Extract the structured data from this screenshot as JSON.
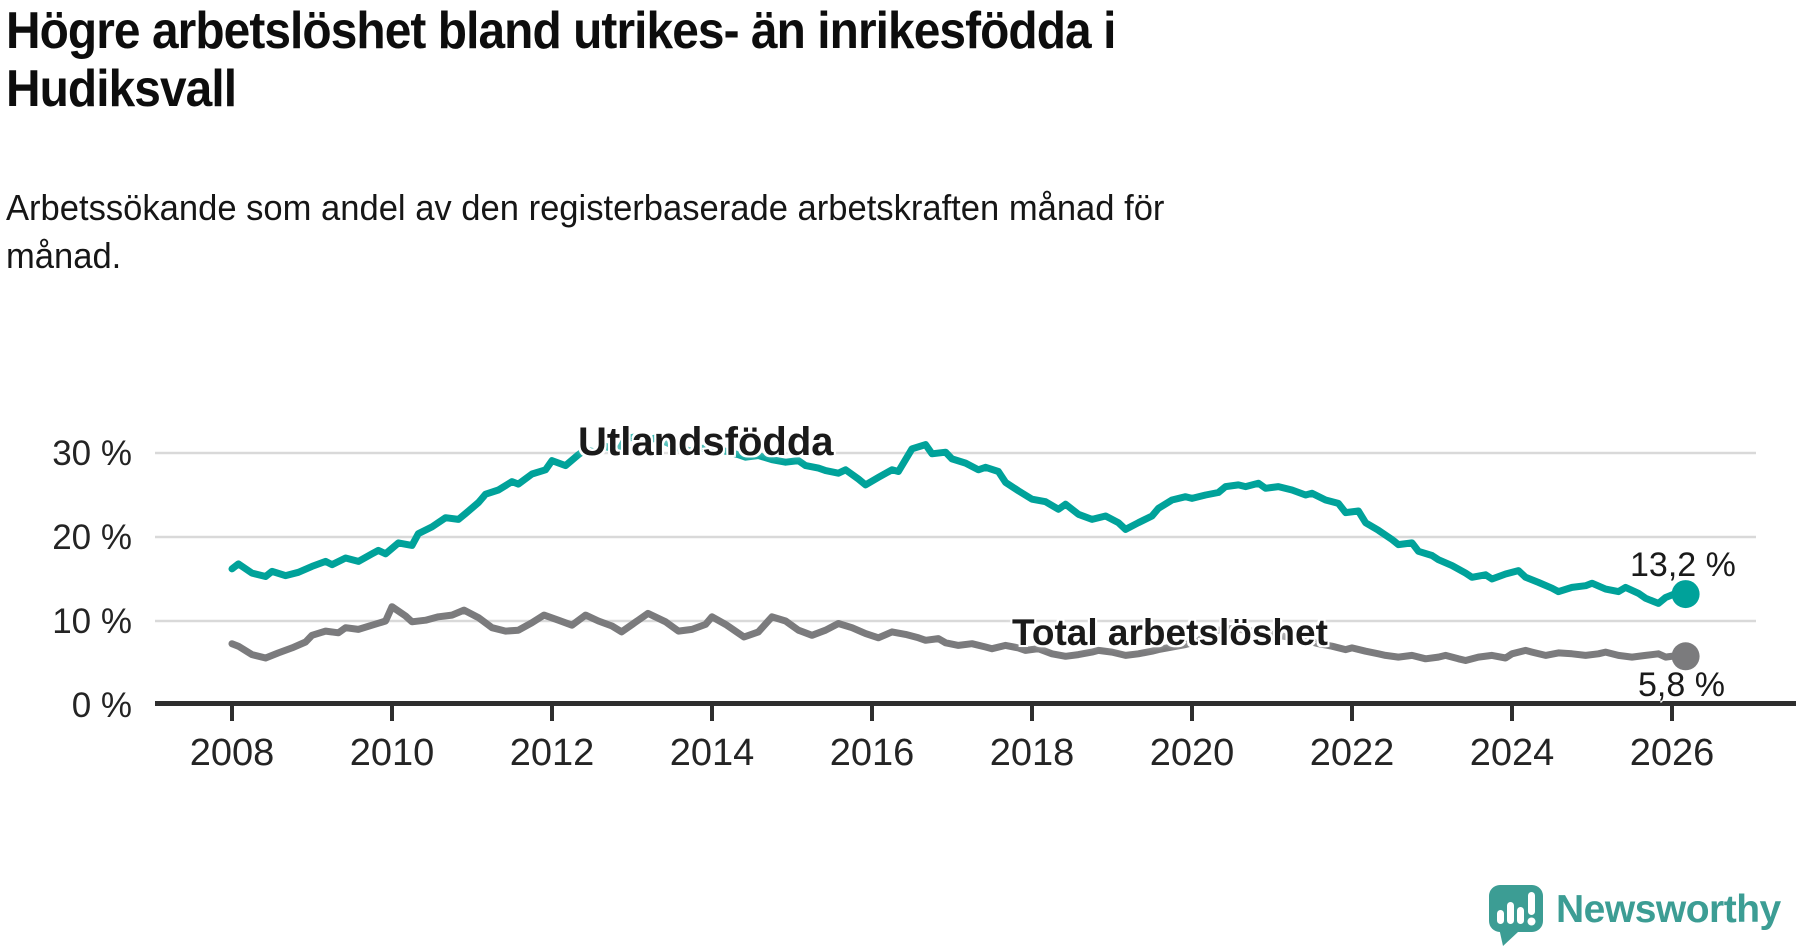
{
  "title_lines": [
    "Högre arbetslöshet bland utrikes- än inrikesfödda i",
    "Hudiksvall"
  ],
  "subtitle_lines": [
    "Arbetssökande som andel av den registerbaserade arbetskraften månad för",
    "månad."
  ],
  "branding": {
    "name": "Newsworthy",
    "icon": "speech-bubble-bar-chart-icon"
  },
  "colors": {
    "foreign_born_line": "#00a29a",
    "total_line": "#7b7b7d",
    "grid": "#d9d9d9",
    "axis": "#2e2e2e",
    "tick_text": "#242424",
    "brand_teal": "#3c9d94",
    "background": "#ffffff"
  },
  "chart_data": {
    "type": "line",
    "title": "Högre arbetslöshet bland utrikes- än inrikesfödda i Hudiksvall",
    "subtitle": "Arbetssökande som andel av den registerbaserade arbetskraften månad för månad.",
    "xlabel": "",
    "ylabel": "",
    "x_axis": {
      "ticks": [
        2008,
        2010,
        2012,
        2014,
        2016,
        2018,
        2020,
        2022,
        2024,
        2026
      ],
      "min": 2007.1,
      "max": 2027.0
    },
    "y_axis": {
      "ticks": [
        0,
        10,
        20,
        30
      ],
      "tick_labels": [
        "0 %",
        "10 %",
        "20 %",
        "30 %"
      ],
      "min": 0,
      "max": 40,
      "gridlines": true
    },
    "legend_position": "inline-labels",
    "series": [
      {
        "name": "Utlandsfödda",
        "color": "#00a29a",
        "end_value": 13.2,
        "end_value_label": "13,2 %",
        "points": [
          [
            2008.0,
            16.2
          ],
          [
            2008.08,
            16.8
          ],
          [
            2008.25,
            15.7
          ],
          [
            2008.42,
            15.3
          ],
          [
            2008.5,
            15.9
          ],
          [
            2008.67,
            15.4
          ],
          [
            2008.83,
            15.8
          ],
          [
            2009.0,
            16.5
          ],
          [
            2009.17,
            17.1
          ],
          [
            2009.25,
            16.7
          ],
          [
            2009.42,
            17.5
          ],
          [
            2009.58,
            17.1
          ],
          [
            2009.75,
            18.0
          ],
          [
            2009.83,
            18.4
          ],
          [
            2009.92,
            18.0
          ],
          [
            2010.08,
            19.3
          ],
          [
            2010.25,
            19.0
          ],
          [
            2010.33,
            20.4
          ],
          [
            2010.5,
            21.2
          ],
          [
            2010.67,
            22.3
          ],
          [
            2010.83,
            22.1
          ],
          [
            2010.92,
            22.8
          ],
          [
            2011.08,
            24.1
          ],
          [
            2011.17,
            25.1
          ],
          [
            2011.33,
            25.6
          ],
          [
            2011.5,
            26.6
          ],
          [
            2011.58,
            26.3
          ],
          [
            2011.75,
            27.5
          ],
          [
            2011.92,
            28.0
          ],
          [
            2012.0,
            29.1
          ],
          [
            2012.17,
            28.5
          ],
          [
            2012.33,
            29.8
          ],
          [
            2012.42,
            30.4
          ],
          [
            2012.58,
            30.0
          ],
          [
            2012.67,
            30.8
          ],
          [
            2012.83,
            30.2
          ],
          [
            2012.92,
            31.7
          ],
          [
            2013.08,
            32.0
          ],
          [
            2013.17,
            31.4
          ],
          [
            2013.33,
            31.9
          ],
          [
            2013.42,
            31.3
          ],
          [
            2013.58,
            30.6
          ],
          [
            2013.75,
            30.2
          ],
          [
            2013.83,
            30.5
          ],
          [
            2014.0,
            30.7
          ],
          [
            2014.17,
            30.2
          ],
          [
            2014.33,
            29.8
          ],
          [
            2014.42,
            29.5
          ],
          [
            2014.58,
            29.7
          ],
          [
            2014.75,
            29.2
          ],
          [
            2014.92,
            28.9
          ],
          [
            2015.08,
            29.1
          ],
          [
            2015.17,
            28.5
          ],
          [
            2015.33,
            28.2
          ],
          [
            2015.42,
            27.9
          ],
          [
            2015.58,
            27.6
          ],
          [
            2015.67,
            28.0
          ],
          [
            2015.83,
            26.9
          ],
          [
            2015.92,
            26.2
          ],
          [
            2016.08,
            27.1
          ],
          [
            2016.25,
            28.0
          ],
          [
            2016.33,
            27.8
          ],
          [
            2016.5,
            30.5
          ],
          [
            2016.67,
            31.0
          ],
          [
            2016.75,
            29.9
          ],
          [
            2016.92,
            30.1
          ],
          [
            2017.0,
            29.3
          ],
          [
            2017.17,
            28.8
          ],
          [
            2017.33,
            28.0
          ],
          [
            2017.42,
            28.3
          ],
          [
            2017.58,
            27.8
          ],
          [
            2017.67,
            26.5
          ],
          [
            2017.83,
            25.5
          ],
          [
            2018.0,
            24.5
          ],
          [
            2018.17,
            24.2
          ],
          [
            2018.33,
            23.3
          ],
          [
            2018.42,
            23.9
          ],
          [
            2018.58,
            22.7
          ],
          [
            2018.75,
            22.1
          ],
          [
            2018.92,
            22.5
          ],
          [
            2019.08,
            21.7
          ],
          [
            2019.17,
            20.9
          ],
          [
            2019.33,
            21.7
          ],
          [
            2019.5,
            22.5
          ],
          [
            2019.58,
            23.4
          ],
          [
            2019.75,
            24.4
          ],
          [
            2019.92,
            24.8
          ],
          [
            2020.0,
            24.6
          ],
          [
            2020.17,
            25.0
          ],
          [
            2020.33,
            25.3
          ],
          [
            2020.42,
            26.0
          ],
          [
            2020.58,
            26.2
          ],
          [
            2020.67,
            26.0
          ],
          [
            2020.83,
            26.4
          ],
          [
            2020.92,
            25.8
          ],
          [
            2021.08,
            26.0
          ],
          [
            2021.25,
            25.6
          ],
          [
            2021.42,
            25.0
          ],
          [
            2021.5,
            25.2
          ],
          [
            2021.67,
            24.4
          ],
          [
            2021.83,
            24.0
          ],
          [
            2021.92,
            22.9
          ],
          [
            2022.08,
            23.1
          ],
          [
            2022.17,
            21.7
          ],
          [
            2022.33,
            20.8
          ],
          [
            2022.5,
            19.7
          ],
          [
            2022.58,
            19.1
          ],
          [
            2022.75,
            19.3
          ],
          [
            2022.83,
            18.3
          ],
          [
            2023.0,
            17.8
          ],
          [
            2023.08,
            17.3
          ],
          [
            2023.25,
            16.6
          ],
          [
            2023.42,
            15.7
          ],
          [
            2023.5,
            15.2
          ],
          [
            2023.67,
            15.5
          ],
          [
            2023.75,
            15.0
          ],
          [
            2023.92,
            15.6
          ],
          [
            2024.08,
            16.0
          ],
          [
            2024.17,
            15.2
          ],
          [
            2024.33,
            14.6
          ],
          [
            2024.5,
            13.9
          ],
          [
            2024.58,
            13.5
          ],
          [
            2024.75,
            14.0
          ],
          [
            2024.92,
            14.2
          ],
          [
            2025.0,
            14.5
          ],
          [
            2025.17,
            13.8
          ],
          [
            2025.33,
            13.5
          ],
          [
            2025.42,
            14.0
          ],
          [
            2025.58,
            13.3
          ],
          [
            2025.67,
            12.7
          ],
          [
            2025.83,
            12.1
          ],
          [
            2025.92,
            12.8
          ],
          [
            2026.08,
            13.4
          ],
          [
            2026.17,
            13.2
          ]
        ]
      },
      {
        "name": "Total arbetslöshet",
        "color": "#7b7b7d",
        "end_value": 5.8,
        "end_value_label": "5,8 %",
        "points": [
          [
            2008.0,
            7.3
          ],
          [
            2008.08,
            7.0
          ],
          [
            2008.25,
            6.0
          ],
          [
            2008.42,
            5.6
          ],
          [
            2008.58,
            6.2
          ],
          [
            2008.75,
            6.8
          ],
          [
            2008.92,
            7.5
          ],
          [
            2009.0,
            8.3
          ],
          [
            2009.17,
            8.8
          ],
          [
            2009.33,
            8.6
          ],
          [
            2009.42,
            9.2
          ],
          [
            2009.58,
            9.0
          ],
          [
            2009.75,
            9.5
          ],
          [
            2009.92,
            10.0
          ],
          [
            2010.0,
            11.7
          ],
          [
            2010.17,
            10.6
          ],
          [
            2010.25,
            9.9
          ],
          [
            2010.42,
            10.1
          ],
          [
            2010.58,
            10.5
          ],
          [
            2010.75,
            10.7
          ],
          [
            2010.9,
            11.3
          ],
          [
            2011.08,
            10.4
          ],
          [
            2011.25,
            9.2
          ],
          [
            2011.42,
            8.8
          ],
          [
            2011.58,
            8.9
          ],
          [
            2011.75,
            9.8
          ],
          [
            2011.9,
            10.7
          ],
          [
            2012.08,
            10.1
          ],
          [
            2012.25,
            9.5
          ],
          [
            2012.42,
            10.7
          ],
          [
            2012.58,
            10.0
          ],
          [
            2012.75,
            9.4
          ],
          [
            2012.87,
            8.7
          ],
          [
            2013.05,
            9.9
          ],
          [
            2013.2,
            10.9
          ],
          [
            2013.42,
            9.9
          ],
          [
            2013.58,
            8.8
          ],
          [
            2013.75,
            9.0
          ],
          [
            2013.92,
            9.6
          ],
          [
            2014.0,
            10.5
          ],
          [
            2014.17,
            9.6
          ],
          [
            2014.4,
            8.1
          ],
          [
            2014.58,
            8.7
          ],
          [
            2014.75,
            10.5
          ],
          [
            2014.92,
            10.0
          ],
          [
            2015.08,
            8.9
          ],
          [
            2015.25,
            8.3
          ],
          [
            2015.42,
            8.9
          ],
          [
            2015.58,
            9.7
          ],
          [
            2015.75,
            9.2
          ],
          [
            2015.92,
            8.5
          ],
          [
            2016.08,
            8.0
          ],
          [
            2016.25,
            8.7
          ],
          [
            2016.42,
            8.4
          ],
          [
            2016.58,
            8.0
          ],
          [
            2016.67,
            7.7
          ],
          [
            2016.83,
            7.9
          ],
          [
            2016.92,
            7.4
          ],
          [
            2017.08,
            7.1
          ],
          [
            2017.25,
            7.3
          ],
          [
            2017.42,
            6.9
          ],
          [
            2017.5,
            6.7
          ],
          [
            2017.67,
            7.1
          ],
          [
            2017.83,
            6.8
          ],
          [
            2017.92,
            6.5
          ],
          [
            2018.08,
            6.7
          ],
          [
            2018.25,
            6.1
          ],
          [
            2018.42,
            5.8
          ],
          [
            2018.58,
            6.0
          ],
          [
            2018.75,
            6.3
          ],
          [
            2018.83,
            6.5
          ],
          [
            2019.0,
            6.3
          ],
          [
            2019.17,
            5.9
          ],
          [
            2019.33,
            6.1
          ],
          [
            2019.5,
            6.4
          ],
          [
            2019.58,
            6.6
          ],
          [
            2019.75,
            6.9
          ],
          [
            2019.92,
            7.2
          ],
          [
            2020.08,
            7.6
          ],
          [
            2020.17,
            8.4
          ],
          [
            2020.33,
            8.9
          ],
          [
            2020.5,
            9.1
          ],
          [
            2020.67,
            8.9
          ],
          [
            2020.83,
            8.7
          ],
          [
            2020.92,
            8.5
          ],
          [
            2021.08,
            8.3
          ],
          [
            2021.25,
            8.0
          ],
          [
            2021.42,
            7.7
          ],
          [
            2021.58,
            7.3
          ],
          [
            2021.75,
            7.0
          ],
          [
            2021.92,
            6.6
          ],
          [
            2022.0,
            6.8
          ],
          [
            2022.17,
            6.4
          ],
          [
            2022.33,
            6.1
          ],
          [
            2022.42,
            5.9
          ],
          [
            2022.58,
            5.7
          ],
          [
            2022.75,
            5.9
          ],
          [
            2022.92,
            5.5
          ],
          [
            2023.08,
            5.7
          ],
          [
            2023.17,
            5.9
          ],
          [
            2023.33,
            5.5
          ],
          [
            2023.42,
            5.3
          ],
          [
            2023.58,
            5.7
          ],
          [
            2023.75,
            5.9
          ],
          [
            2023.92,
            5.6
          ],
          [
            2024.0,
            6.1
          ],
          [
            2024.17,
            6.5
          ],
          [
            2024.25,
            6.3
          ],
          [
            2024.42,
            5.9
          ],
          [
            2024.58,
            6.2
          ],
          [
            2024.75,
            6.1
          ],
          [
            2024.92,
            5.9
          ],
          [
            2025.08,
            6.1
          ],
          [
            2025.17,
            6.3
          ],
          [
            2025.33,
            5.9
          ],
          [
            2025.5,
            5.7
          ],
          [
            2025.67,
            5.9
          ],
          [
            2025.83,
            6.1
          ],
          [
            2025.92,
            5.7
          ],
          [
            2026.08,
            5.9
          ],
          [
            2026.17,
            5.8
          ]
        ]
      }
    ]
  }
}
